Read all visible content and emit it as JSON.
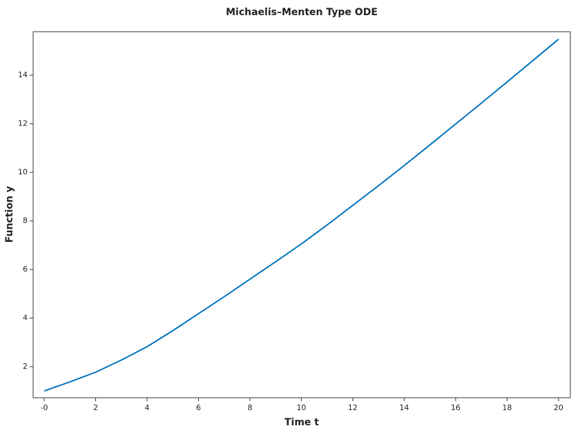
{
  "chart_data": {
    "type": "line",
    "title": "Michaelis–Menten Type ODE",
    "x_label": "Time t",
    "y_label": "Function y",
    "x": [
      0,
      1,
      2,
      3,
      4,
      5,
      6,
      7,
      8,
      9,
      10,
      11,
      12,
      13,
      14,
      15,
      16,
      17,
      18,
      19,
      20
    ],
    "series": [
      {
        "color": "#0072bd",
        "values": [
          1.0,
          1.37,
          1.77,
          2.27,
          2.82,
          3.48,
          4.18,
          4.88,
          5.6,
          6.32,
          7.05,
          7.83,
          8.64,
          9.45,
          10.28,
          11.13,
          11.99,
          12.85,
          13.72,
          14.6,
          15.48
        ]
      }
    ],
    "xlim": [
      -0.43,
      20.46
    ],
    "ylim": [
      0.72,
      15.79
    ],
    "xticks": [
      {
        "value": 0,
        "label": "-0"
      },
      2,
      4,
      6,
      8,
      10,
      12,
      14,
      16,
      18,
      20
    ],
    "yticks": [
      2,
      4,
      6,
      8,
      10,
      12,
      14
    ]
  }
}
